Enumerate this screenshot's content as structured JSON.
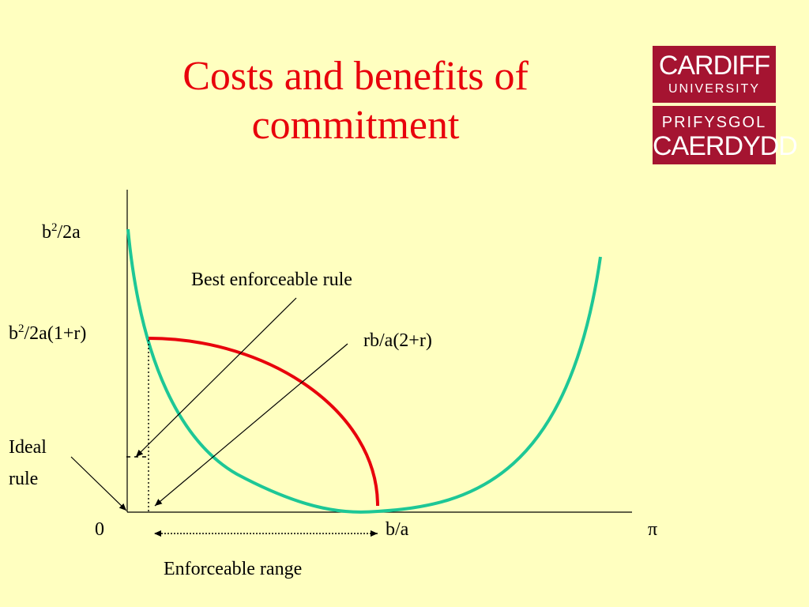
{
  "slide": {
    "title_line1": "Costs and benefits of",
    "title_line2": "commitment"
  },
  "logo": {
    "line1": "CARDIFF",
    "line2": "UNIVERSITY",
    "line3": "PRIFYSGOL",
    "line4": "CAERDYDD"
  },
  "diagram": {
    "y_label_top_base": "b",
    "y_label_top_sup": "2",
    "y_label_top_rest": "/2a",
    "y_label_mid_base": "b",
    "y_label_mid_sup": "2",
    "y_label_mid_rest": "/2a(1+r)",
    "origin_label": "0",
    "x_mid_label": "b/a",
    "x_axis_label": "π",
    "best_rule_label": "Best enforceable rule",
    "rb_label": "rb/a(2+r)",
    "ideal_rule_line1": "Ideal",
    "ideal_rule_line2": "rule",
    "enforceable_range_label": "Enforceable range"
  },
  "colors": {
    "background": "#ffffc0",
    "title": "#e8000b",
    "benefit_curve": "#e8000b",
    "cost_curve": "#1dc796",
    "logo_bg": "#a51431"
  }
}
